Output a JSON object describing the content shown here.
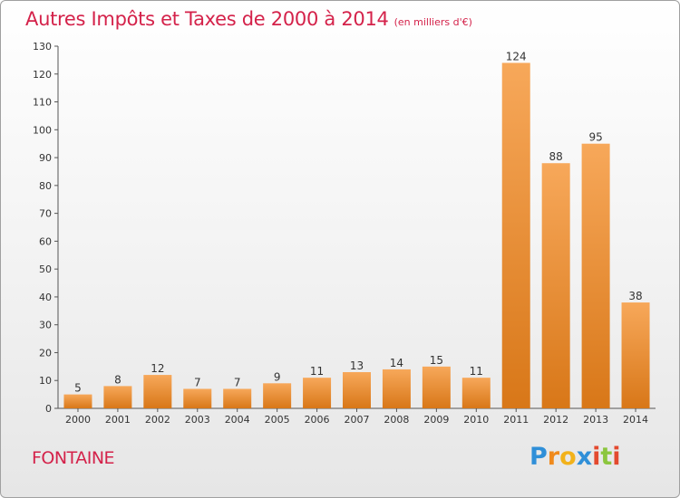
{
  "title": "Autres Impôts et Taxes de 2000 à 2014",
  "subtitle": "(en milliers d'€)",
  "location": "FONTAINE",
  "brand": {
    "letters": [
      "P",
      "r",
      "o",
      "x",
      "i",
      "t",
      "i"
    ],
    "colors": [
      "#2f8fd8",
      "#f08a1c",
      "#f2b21b",
      "#2f8fd8",
      "#e34a2f",
      "#8cc63e",
      "#e34a2f"
    ]
  },
  "colors": {
    "title": "#d4224a",
    "bar_light": "#f7a85a",
    "bar_dark": "#d87718"
  },
  "chart_data": {
    "type": "bar",
    "categories": [
      "2000",
      "2001",
      "2002",
      "2003",
      "2004",
      "2005",
      "2006",
      "2007",
      "2008",
      "2009",
      "2010",
      "2011",
      "2012",
      "2013",
      "2014"
    ],
    "values": [
      5,
      8,
      12,
      7,
      7,
      9,
      11,
      13,
      14,
      15,
      11,
      124,
      88,
      95,
      38
    ],
    "yticks": [
      0,
      10,
      20,
      30,
      40,
      50,
      60,
      70,
      80,
      90,
      100,
      110,
      120,
      130
    ],
    "ylim": [
      0,
      130
    ],
    "grid": false,
    "data_labels": true
  }
}
